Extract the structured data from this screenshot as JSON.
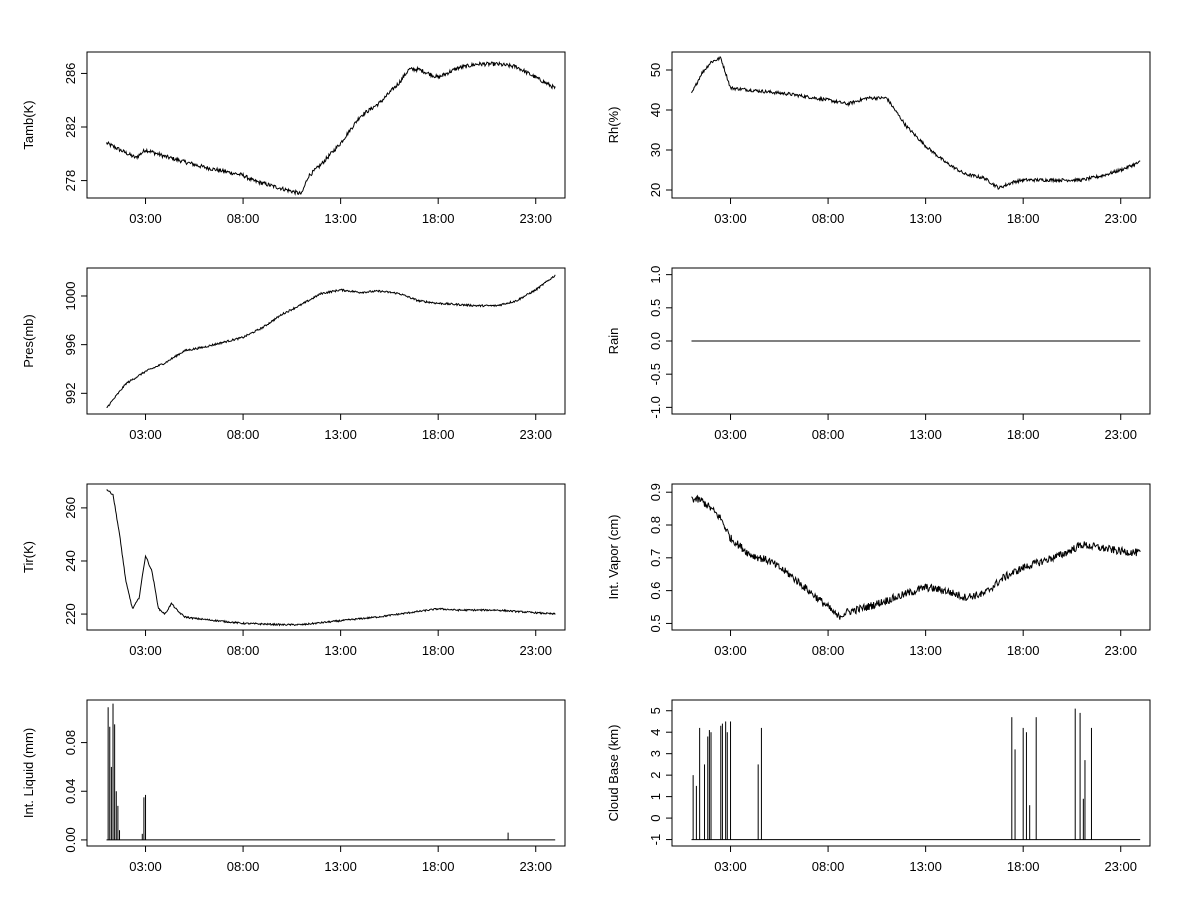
{
  "x_tick_labels": [
    "03:00",
    "08:00",
    "13:00",
    "18:00",
    "23:00"
  ],
  "chart_data": [
    {
      "type": "line",
      "ylabel": "Tamb(K)",
      "x_ticks": [
        "03:00",
        "08:00",
        "13:00",
        "18:00",
        "23:00"
      ],
      "xlim": [
        "00:00",
        "24:30"
      ],
      "ylim": [
        276.7,
        287.6
      ],
      "y_ticks": [
        278,
        282,
        286
      ],
      "noise": 0.15,
      "series": [
        {
          "x": [
            "01:00",
            "02:30",
            "03:00",
            "04:00",
            "06:00",
            "08:00",
            "08:30",
            "10:00",
            "11:00",
            "11:20",
            "12:00",
            "13:00",
            "14:00",
            "15:00",
            "16:00",
            "16:30",
            "17:00",
            "18:00",
            "19:00",
            "20:00",
            "21:00",
            "22:00",
            "23:00",
            "24:00"
          ],
          "y": [
            280.8,
            279.7,
            280.3,
            279.8,
            279.0,
            278.4,
            278.0,
            277.4,
            277.0,
            278.3,
            279.2,
            280.8,
            282.8,
            283.8,
            285.3,
            286.3,
            286.3,
            285.7,
            286.4,
            286.7,
            286.7,
            286.5,
            285.7,
            284.9
          ]
        }
      ]
    },
    {
      "type": "line",
      "ylabel": "Rh(%)",
      "x_ticks": [
        "03:00",
        "08:00",
        "13:00",
        "18:00",
        "23:00"
      ],
      "xlim": [
        "00:00",
        "24:30"
      ],
      "ylim": [
        18,
        54.5
      ],
      "y_ticks": [
        20,
        30,
        40,
        50
      ],
      "noise": 0.4,
      "series": [
        {
          "x": [
            "01:00",
            "01:30",
            "02:00",
            "02:30",
            "03:00",
            "04:00",
            "06:00",
            "08:00",
            "09:00",
            "10:00",
            "11:00",
            "12:00",
            "13:00",
            "14:00",
            "15:00",
            "16:00",
            "16:45",
            "17:30",
            "18:00",
            "19:00",
            "20:00",
            "21:00",
            "22:00",
            "23:00",
            "24:00"
          ],
          "y": [
            44,
            49,
            52,
            53,
            45.5,
            45,
            44,
            42.5,
            41.5,
            43,
            43,
            36,
            31,
            27,
            24,
            23,
            20.5,
            22,
            22.5,
            22.5,
            22.5,
            22.5,
            23.5,
            25,
            27
          ]
        }
      ]
    },
    {
      "type": "line",
      "ylabel": "Pres(mb)",
      "x_ticks": [
        "03:00",
        "08:00",
        "13:00",
        "18:00",
        "23:00"
      ],
      "xlim": [
        "00:00",
        "24:30"
      ],
      "ylim": [
        990.3,
        1002.3
      ],
      "y_ticks": [
        992,
        996,
        1000
      ],
      "noise": 0.08,
      "series": [
        {
          "x": [
            "01:00",
            "02:00",
            "03:00",
            "04:00",
            "05:00",
            "06:00",
            "07:00",
            "08:00",
            "09:00",
            "10:00",
            "11:00",
            "12:00",
            "13:00",
            "14:00",
            "15:00",
            "16:00",
            "17:00",
            "18:00",
            "19:00",
            "20:00",
            "21:00",
            "22:00",
            "23:00",
            "24:00"
          ],
          "y": [
            990.8,
            992.8,
            993.8,
            994.5,
            995.5,
            995.8,
            996.2,
            996.6,
            997.4,
            998.5,
            999.3,
            1000.2,
            1000.5,
            1000.3,
            1000.4,
            1000.2,
            999.6,
            999.4,
            999.3,
            999.2,
            999.2,
            999.6,
            1000.5,
            1001.7
          ]
        }
      ]
    },
    {
      "type": "line",
      "ylabel": "Rain",
      "x_ticks": [
        "03:00",
        "08:00",
        "13:00",
        "18:00",
        "23:00"
      ],
      "xlim": [
        "00:00",
        "24:30"
      ],
      "ylim": [
        -1.1,
        1.1
      ],
      "y_ticks": [
        -1.0,
        -0.5,
        0.0,
        0.5,
        1.0
      ],
      "y_tick_labels": [
        "-1.0",
        "-0.5",
        "0.0",
        "0.5",
        "1.0"
      ],
      "noise": 0,
      "series": [
        {
          "x": [
            "01:00",
            "24:00"
          ],
          "y": [
            0,
            0
          ]
        }
      ]
    },
    {
      "type": "line",
      "ylabel": "Tir(K)",
      "x_ticks": [
        "03:00",
        "08:00",
        "13:00",
        "18:00",
        "23:00"
      ],
      "xlim": [
        "00:00",
        "24:30"
      ],
      "ylim": [
        214,
        269
      ],
      "y_ticks": [
        220,
        240,
        260
      ],
      "noise": 0.3,
      "series": [
        {
          "x": [
            "01:00",
            "01:20",
            "01:40",
            "02:00",
            "02:20",
            "02:40",
            "03:00",
            "03:20",
            "03:40",
            "04:00",
            "04:20",
            "04:40",
            "05:00",
            "05:20",
            "06:00",
            "08:00",
            "10:00",
            "11:00",
            "13:00",
            "15:00",
            "16:00",
            "17:00",
            "18:00",
            "19:00",
            "20:00",
            "21:00",
            "22:00",
            "23:00",
            "24:00"
          ],
          "y": [
            267,
            265,
            250,
            232,
            222,
            226,
            242,
            236,
            222,
            220,
            224,
            221,
            219,
            218.5,
            218,
            216.5,
            216,
            216,
            217.5,
            219,
            220,
            221,
            222,
            221.5,
            221.5,
            221.5,
            221,
            220.5,
            220
          ]
        }
      ]
    },
    {
      "type": "line",
      "ylabel": "Int. Vapor (cm)",
      "x_ticks": [
        "03:00",
        "08:00",
        "13:00",
        "18:00",
        "23:00"
      ],
      "xlim": [
        "00:00",
        "24:30"
      ],
      "ylim": [
        0.48,
        0.925
      ],
      "y_ticks": [
        0.5,
        0.6,
        0.7,
        0.8,
        0.9
      ],
      "noise": 0.012,
      "series": [
        {
          "x": [
            "01:00",
            "01:30",
            "02:00",
            "02:30",
            "03:00",
            "04:00",
            "05:00",
            "06:00",
            "07:00",
            "08:00",
            "08:30",
            "09:00",
            "10:00",
            "11:00",
            "12:00",
            "13:00",
            "14:00",
            "15:00",
            "16:00",
            "17:00",
            "18:00",
            "19:00",
            "20:00",
            "21:00",
            "22:00",
            "23:00",
            "24:00"
          ],
          "y": [
            0.88,
            0.875,
            0.85,
            0.82,
            0.76,
            0.71,
            0.69,
            0.65,
            0.6,
            0.55,
            0.52,
            0.535,
            0.55,
            0.57,
            0.59,
            0.61,
            0.6,
            0.58,
            0.59,
            0.64,
            0.67,
            0.69,
            0.71,
            0.74,
            0.73,
            0.72,
            0.715
          ]
        }
      ]
    },
    {
      "type": "line",
      "ylabel": "Int. Liquid (mm)",
      "x_ticks": [
        "03:00",
        "08:00",
        "13:00",
        "18:00",
        "23:00"
      ],
      "xlim": [
        "00:00",
        "24:30"
      ],
      "ylim": [
        -0.005,
        0.115
      ],
      "y_ticks": [
        0.0,
        0.04,
        0.08
      ],
      "y_tick_labels": [
        "0.00",
        "0.04",
        "0.08"
      ],
      "noise": 0,
      "series": [
        {
          "x": [
            "01:00",
            "02:45",
            "03:00",
            "21:30",
            "24:00"
          ],
          "y": [
            0,
            0,
            0,
            0,
            0
          ]
        }
      ],
      "spikes": [
        {
          "x": "01:05",
          "y": 0.109
        },
        {
          "x": "01:10",
          "y": 0.093
        },
        {
          "x": "01:15",
          "y": 0.06
        },
        {
          "x": "01:20",
          "y": 0.112
        },
        {
          "x": "01:25",
          "y": 0.095
        },
        {
          "x": "01:30",
          "y": 0.04
        },
        {
          "x": "01:35",
          "y": 0.028
        },
        {
          "x": "01:40",
          "y": 0.008
        },
        {
          "x": "02:50",
          "y": 0.005
        },
        {
          "x": "02:55",
          "y": 0.035
        },
        {
          "x": "03:00",
          "y": 0.037
        },
        {
          "x": "21:35",
          "y": 0.006
        }
      ]
    },
    {
      "type": "line",
      "ylabel": "Cloud Base (km)",
      "x_ticks": [
        "03:00",
        "08:00",
        "13:00",
        "18:00",
        "23:00"
      ],
      "xlim": [
        "00:00",
        "24:30"
      ],
      "ylim": [
        -1.3,
        5.5
      ],
      "y_ticks": [
        -1,
        0,
        1,
        2,
        3,
        4,
        5
      ],
      "noise": 0,
      "series": [
        {
          "x": [
            "01:00",
            "24:00"
          ],
          "y": [
            -1,
            -1
          ]
        }
      ],
      "spikes": [
        {
          "x": "01:05",
          "y": 2.0
        },
        {
          "x": "01:15",
          "y": 1.5
        },
        {
          "x": "01:25",
          "y": 4.2
        },
        {
          "x": "01:40",
          "y": 2.5
        },
        {
          "x": "01:50",
          "y": 3.8
        },
        {
          "x": "01:55",
          "y": 4.1
        },
        {
          "x": "02:00",
          "y": 4.0
        },
        {
          "x": "02:30",
          "y": 4.3
        },
        {
          "x": "02:35",
          "y": 4.4
        },
        {
          "x": "02:45",
          "y": 4.5
        },
        {
          "x": "02:50",
          "y": 4.0
        },
        {
          "x": "03:00",
          "y": 4.5
        },
        {
          "x": "04:25",
          "y": 2.5
        },
        {
          "x": "04:35",
          "y": 4.2
        },
        {
          "x": "17:25",
          "y": 4.7
        },
        {
          "x": "17:35",
          "y": 3.2
        },
        {
          "x": "18:00",
          "y": 4.2
        },
        {
          "x": "18:10",
          "y": 4.0
        },
        {
          "x": "18:20",
          "y": 0.6
        },
        {
          "x": "18:40",
          "y": 4.7
        },
        {
          "x": "20:40",
          "y": 5.1
        },
        {
          "x": "20:55",
          "y": 4.9
        },
        {
          "x": "21:05",
          "y": 0.9
        },
        {
          "x": "21:10",
          "y": 2.7
        },
        {
          "x": "21:30",
          "y": 4.2
        }
      ]
    }
  ]
}
